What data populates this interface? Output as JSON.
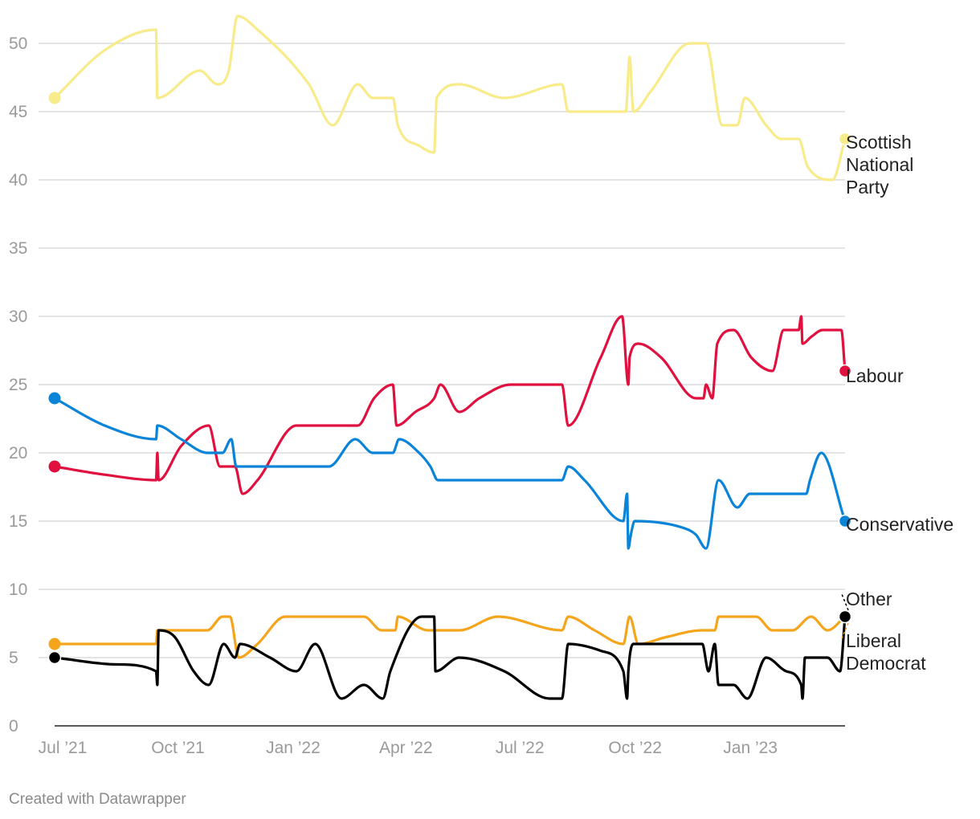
{
  "chart_data": {
    "type": "line",
    "title": "",
    "xlabel": "",
    "ylabel": "",
    "ylim": [
      0,
      52
    ],
    "xlim": [
      "2021-07-01",
      "2023-03-24"
    ],
    "yticks": [
      0,
      5,
      10,
      15,
      20,
      25,
      30,
      35,
      40,
      45,
      50
    ],
    "xticks": [
      {
        "date": "2021-07-01",
        "label": "Jul ’21"
      },
      {
        "date": "2021-10-01",
        "label": "Oct ’21"
      },
      {
        "date": "2022-01-01",
        "label": "Jan ’22"
      },
      {
        "date": "2022-04-01",
        "label": "Apr ’22"
      },
      {
        "date": "2022-07-01",
        "label": "Jul ’22"
      },
      {
        "date": "2022-10-01",
        "label": "Oct ’22"
      },
      {
        "date": "2023-01-01",
        "label": "Jan ’23"
      }
    ],
    "series": [
      {
        "key": "snp",
        "name": "Scottish National Party",
        "label_lines": [
          "Scottish",
          "National",
          "Party"
        ],
        "color": "#f7eb8a",
        "points": [
          [
            "2021-07-01",
            46
          ],
          [
            "2021-08-10",
            49.5
          ],
          [
            "2021-09-20",
            51
          ],
          [
            "2021-09-21",
            46
          ],
          [
            "2021-10-25",
            48
          ],
          [
            "2021-11-08",
            47
          ],
          [
            "2021-11-17",
            48
          ],
          [
            "2021-11-24",
            52
          ],
          [
            "2021-12-10",
            51
          ],
          [
            "2022-01-20",
            47
          ],
          [
            "2022-02-08",
            44
          ],
          [
            "2022-02-28",
            47
          ],
          [
            "2022-03-12",
            46
          ],
          [
            "2022-03-28",
            46
          ],
          [
            "2022-04-01",
            44
          ],
          [
            "2022-04-18",
            42.5
          ],
          [
            "2022-04-30",
            42
          ],
          [
            "2022-05-02",
            46
          ],
          [
            "2022-05-20",
            47
          ],
          [
            "2022-06-25",
            46
          ],
          [
            "2022-08-10",
            47
          ],
          [
            "2022-08-15",
            45
          ],
          [
            "2022-09-30",
            45
          ],
          [
            "2022-10-03",
            49
          ],
          [
            "2022-10-06",
            45
          ],
          [
            "2022-10-20",
            46.5
          ],
          [
            "2022-11-20",
            50
          ],
          [
            "2022-12-03",
            50
          ],
          [
            "2022-12-16",
            44
          ],
          [
            "2022-12-28",
            44
          ],
          [
            "2023-01-03",
            46
          ],
          [
            "2023-01-20",
            44
          ],
          [
            "2023-02-01",
            43
          ],
          [
            "2023-02-15",
            43
          ],
          [
            "2023-02-22",
            41
          ],
          [
            "2023-03-14",
            40
          ],
          [
            "2023-03-24",
            43
          ]
        ],
        "last_value": 43
      },
      {
        "key": "lab",
        "name": "Labour",
        "label_lines": [
          "Labour"
        ],
        "color": "#e0103f",
        "points": [
          [
            "2021-07-01",
            19
          ],
          [
            "2021-08-10",
            18.4
          ],
          [
            "2021-09-20",
            18
          ],
          [
            "2021-09-21",
            20
          ],
          [
            "2021-09-22",
            18
          ],
          [
            "2021-10-10",
            20.5
          ],
          [
            "2021-11-01",
            22
          ],
          [
            "2021-11-10",
            19
          ],
          [
            "2021-11-22",
            19
          ],
          [
            "2021-11-28",
            17
          ],
          [
            "2021-12-10",
            18
          ],
          [
            "2022-01-10",
            22
          ],
          [
            "2022-02-10",
            22
          ],
          [
            "2022-02-28",
            22
          ],
          [
            "2022-03-13",
            24
          ],
          [
            "2022-03-28",
            25
          ],
          [
            "2022-03-31",
            22
          ],
          [
            "2022-04-15",
            23
          ],
          [
            "2022-04-30",
            24
          ],
          [
            "2022-05-05",
            25
          ],
          [
            "2022-05-20",
            23
          ],
          [
            "2022-06-05",
            24
          ],
          [
            "2022-06-30",
            25
          ],
          [
            "2022-07-31",
            25
          ],
          [
            "2022-08-10",
            25
          ],
          [
            "2022-08-15",
            22
          ],
          [
            "2022-09-10",
            27
          ],
          [
            "2022-09-27",
            30
          ],
          [
            "2022-10-02",
            25
          ],
          [
            "2022-10-03",
            27
          ],
          [
            "2022-10-10",
            28
          ],
          [
            "2022-10-28",
            27
          ],
          [
            "2022-11-25",
            24
          ],
          [
            "2022-12-01",
            24
          ],
          [
            "2022-12-03",
            25
          ],
          [
            "2022-12-08",
            24
          ],
          [
            "2022-12-12",
            28
          ],
          [
            "2022-12-25",
            29
          ],
          [
            "2023-01-08",
            27
          ],
          [
            "2023-01-25",
            26
          ],
          [
            "2023-02-03",
            29
          ],
          [
            "2023-02-15",
            29
          ],
          [
            "2023-02-17",
            30
          ],
          [
            "2023-02-18",
            28
          ],
          [
            "2023-02-25",
            28.5
          ],
          [
            "2023-03-06",
            29
          ],
          [
            "2023-03-21",
            29
          ],
          [
            "2023-03-24",
            26
          ]
        ],
        "last_value": 26
      },
      {
        "key": "con",
        "name": "Conservative",
        "label_lines": [
          "Conservative"
        ],
        "color": "#0a84d8",
        "points": [
          [
            "2021-07-01",
            24
          ],
          [
            "2021-08-10",
            22
          ],
          [
            "2021-09-20",
            21
          ],
          [
            "2021-09-21",
            22
          ],
          [
            "2021-10-10",
            21
          ],
          [
            "2021-10-31",
            20
          ],
          [
            "2021-11-12",
            20
          ],
          [
            "2021-11-19",
            21
          ],
          [
            "2021-11-23",
            19
          ],
          [
            "2022-01-20",
            19
          ],
          [
            "2022-02-05",
            19
          ],
          [
            "2022-02-26",
            21
          ],
          [
            "2022-03-12",
            20
          ],
          [
            "2022-03-28",
            20
          ],
          [
            "2022-04-02",
            21
          ],
          [
            "2022-04-18",
            20
          ],
          [
            "2022-04-27",
            19
          ],
          [
            "2022-05-03",
            18
          ],
          [
            "2022-06-20",
            18
          ],
          [
            "2022-07-31",
            18
          ],
          [
            "2022-08-10",
            18
          ],
          [
            "2022-08-15",
            19
          ],
          [
            "2022-08-28",
            18
          ],
          [
            "2022-09-28",
            15
          ],
          [
            "2022-10-01",
            17
          ],
          [
            "2022-10-02",
            13
          ],
          [
            "2022-10-04",
            14
          ],
          [
            "2022-10-07",
            15
          ],
          [
            "2022-11-15",
            14.5
          ],
          [
            "2022-11-25",
            14
          ],
          [
            "2022-12-03",
            13
          ],
          [
            "2022-12-13",
            18
          ],
          [
            "2022-12-28",
            16
          ],
          [
            "2023-01-07",
            17
          ],
          [
            "2023-02-21",
            17
          ],
          [
            "2023-02-24",
            18
          ],
          [
            "2023-03-05",
            20
          ],
          [
            "2023-03-24",
            15
          ]
        ],
        "last_value": 15
      },
      {
        "key": "ld",
        "name": "Liberal Democrat",
        "label_lines": [
          "Liberal",
          "Democrat"
        ],
        "color": "#f5a51c",
        "points": [
          [
            "2021-07-01",
            6
          ],
          [
            "2021-09-20",
            6
          ],
          [
            "2021-09-21",
            7
          ],
          [
            "2021-10-20",
            7
          ],
          [
            "2021-10-31",
            7
          ],
          [
            "2021-11-12",
            8
          ],
          [
            "2021-11-18",
            8
          ],
          [
            "2021-11-25",
            5
          ],
          [
            "2021-12-10",
            6
          ],
          [
            "2022-01-01",
            8
          ],
          [
            "2022-02-15",
            8
          ],
          [
            "2022-03-05",
            8
          ],
          [
            "2022-03-19",
            7
          ],
          [
            "2022-03-30",
            7
          ],
          [
            "2022-04-01",
            8
          ],
          [
            "2022-04-25",
            7
          ],
          [
            "2022-05-20",
            7
          ],
          [
            "2022-06-20",
            8
          ],
          [
            "2022-08-10",
            7
          ],
          [
            "2022-08-15",
            8
          ],
          [
            "2022-09-05",
            7
          ],
          [
            "2022-09-28",
            6
          ],
          [
            "2022-10-03",
            8
          ],
          [
            "2022-10-10",
            6
          ],
          [
            "2022-11-01",
            6.5
          ],
          [
            "2022-11-30",
            7
          ],
          [
            "2022-12-10",
            7
          ],
          [
            "2022-12-13",
            8
          ],
          [
            "2023-01-12",
            8
          ],
          [
            "2023-01-25",
            7
          ],
          [
            "2023-02-10",
            7
          ],
          [
            "2023-02-25",
            8
          ],
          [
            "2023-03-10",
            7
          ],
          [
            "2023-03-24",
            8
          ]
        ],
        "last_value": 8
      },
      {
        "key": "other",
        "name": "Other",
        "label_lines": [
          "Other"
        ],
        "color": "#000000",
        "points": [
          [
            "2021-07-01",
            5
          ],
          [
            "2021-08-20",
            4.5
          ],
          [
            "2021-09-20",
            4
          ],
          [
            "2021-09-21",
            3
          ],
          [
            "2021-09-22",
            7
          ],
          [
            "2021-10-05",
            6.5
          ],
          [
            "2021-10-20",
            4
          ],
          [
            "2021-11-01",
            3
          ],
          [
            "2021-11-13",
            6
          ],
          [
            "2021-11-22",
            5
          ],
          [
            "2021-11-26",
            6
          ],
          [
            "2021-12-20",
            5
          ],
          [
            "2022-01-10",
            4
          ],
          [
            "2022-01-25",
            6
          ],
          [
            "2022-02-15",
            2
          ],
          [
            "2022-03-05",
            3
          ],
          [
            "2022-03-20",
            2
          ],
          [
            "2022-03-26",
            4
          ],
          [
            "2022-04-20",
            8
          ],
          [
            "2022-04-30",
            8
          ],
          [
            "2022-05-01",
            4
          ],
          [
            "2022-05-20",
            5
          ],
          [
            "2022-06-25",
            4
          ],
          [
            "2022-07-31",
            2
          ],
          [
            "2022-08-10",
            2
          ],
          [
            "2022-08-15",
            6
          ],
          [
            "2022-09-10",
            5.5
          ],
          [
            "2022-09-28",
            4
          ],
          [
            "2022-10-01",
            2
          ],
          [
            "2022-10-02",
            4
          ],
          [
            "2022-10-06",
            6
          ],
          [
            "2022-11-30",
            6
          ],
          [
            "2022-12-05",
            4
          ],
          [
            "2022-12-10",
            6
          ],
          [
            "2022-12-13",
            3
          ],
          [
            "2022-12-25",
            3
          ],
          [
            "2023-01-05",
            2
          ],
          [
            "2023-01-20",
            5
          ],
          [
            "2023-02-05",
            4
          ],
          [
            "2023-02-17",
            3
          ],
          [
            "2023-02-18",
            2
          ],
          [
            "2023-02-20",
            5
          ],
          [
            "2023-03-10",
            5
          ],
          [
            "2023-03-20",
            4
          ],
          [
            "2023-03-24",
            8
          ]
        ],
        "last_value": 8
      }
    ]
  },
  "footer": {
    "credit": "Created with Datawrapper"
  }
}
